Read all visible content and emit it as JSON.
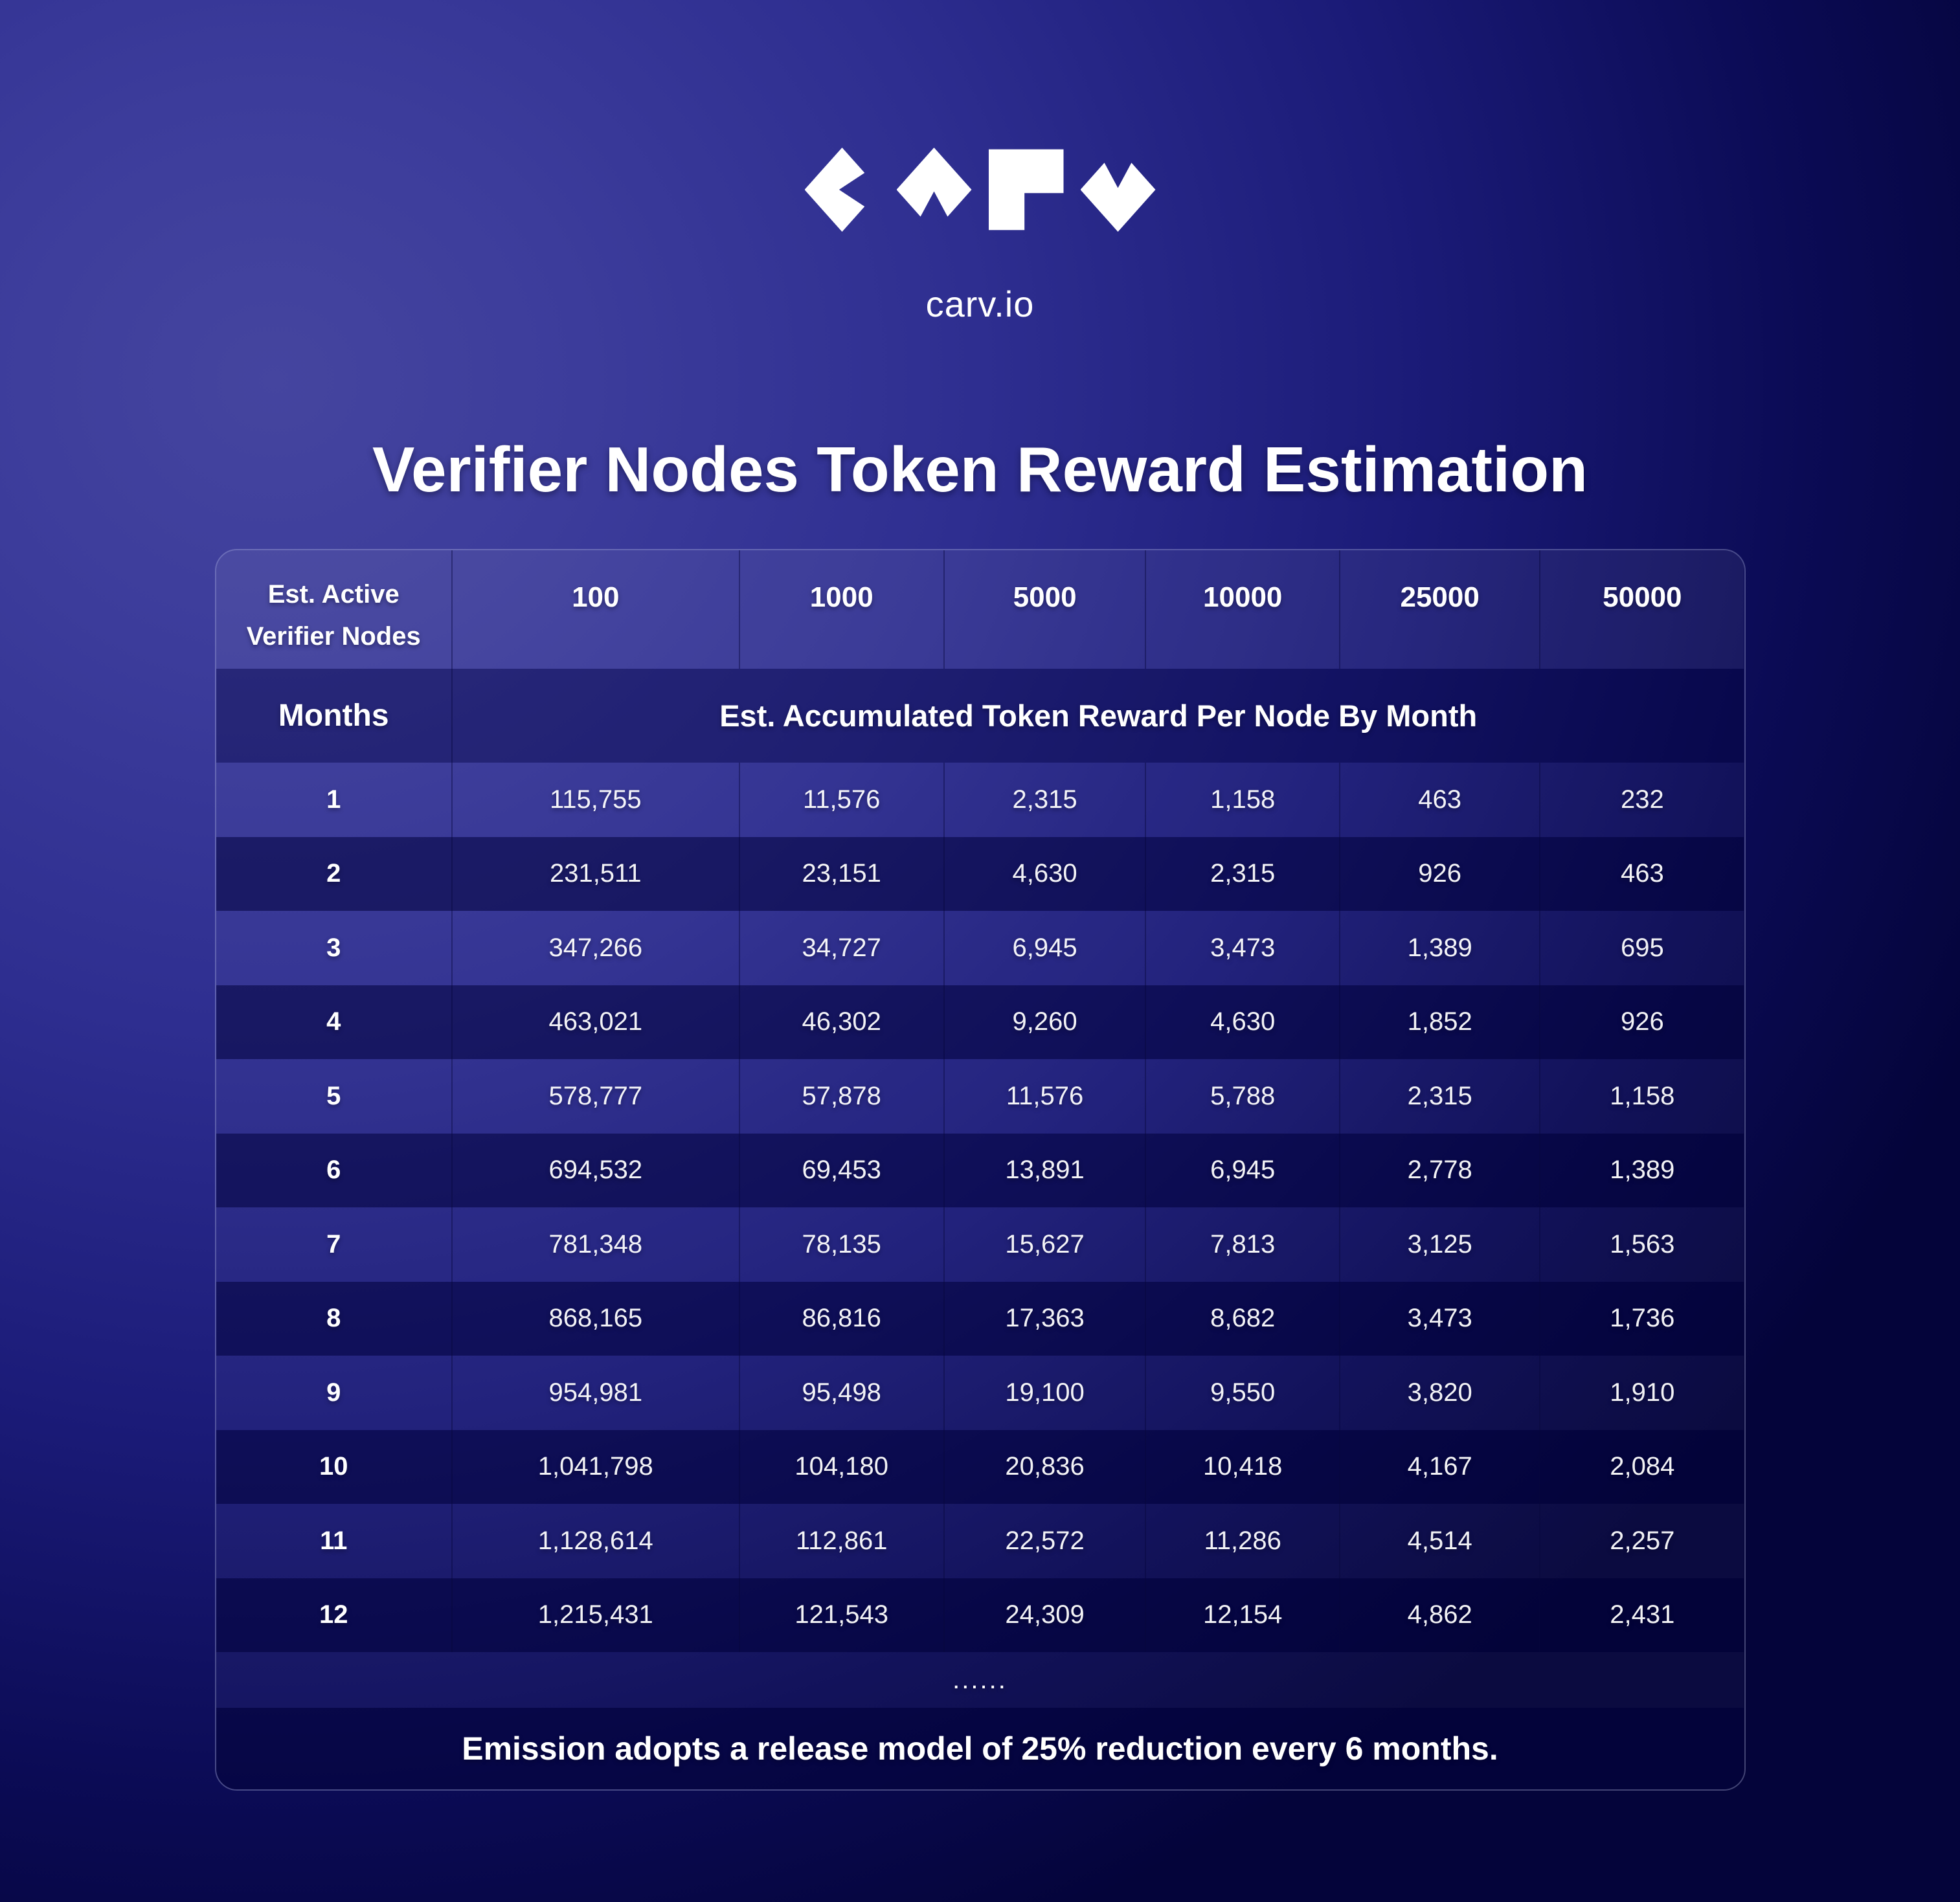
{
  "brand": {
    "domain": "carv.io",
    "logo_glyphs": [
      "c",
      "a",
      "r",
      "v"
    ]
  },
  "title": "Verifier Nodes Token Reward Estimation",
  "table": {
    "corner_header": {
      "line1": "Est. Active",
      "line2": "Verifier Nodes"
    },
    "node_counts": [
      "100",
      "1000",
      "5000",
      "10000",
      "25000",
      "50000"
    ],
    "months_label": "Months",
    "reward_header": "Est. Accumulated Token Reward Per Node By Month",
    "rows": [
      {
        "month": "1",
        "values": [
          "115,755",
          "11,576",
          "2,315",
          "1,158",
          "463",
          "232"
        ]
      },
      {
        "month": "2",
        "values": [
          "231,511",
          "23,151",
          "4,630",
          "2,315",
          "926",
          "463"
        ]
      },
      {
        "month": "3",
        "values": [
          "347,266",
          "34,727",
          "6,945",
          "3,473",
          "1,389",
          "695"
        ]
      },
      {
        "month": "4",
        "values": [
          "463,021",
          "46,302",
          "9,260",
          "4,630",
          "1,852",
          "926"
        ]
      },
      {
        "month": "5",
        "values": [
          "578,777",
          "57,878",
          "11,576",
          "5,788",
          "2,315",
          "1,158"
        ]
      },
      {
        "month": "6",
        "values": [
          "694,532",
          "69,453",
          "13,891",
          "6,945",
          "2,778",
          "1,389"
        ]
      },
      {
        "month": "7",
        "values": [
          "781,348",
          "78,135",
          "15,627",
          "7,813",
          "3,125",
          "1,563"
        ]
      },
      {
        "month": "8",
        "values": [
          "868,165",
          "86,816",
          "17,363",
          "8,682",
          "3,473",
          "1,736"
        ]
      },
      {
        "month": "9",
        "values": [
          "954,981",
          "95,498",
          "19,100",
          "9,550",
          "3,820",
          "1,910"
        ]
      },
      {
        "month": "10",
        "values": [
          "1,041,798",
          "104,180",
          "20,836",
          "10,418",
          "4,167",
          "2,084"
        ]
      },
      {
        "month": "11",
        "values": [
          "1,128,614",
          "112,861",
          "22,572",
          "11,286",
          "4,514",
          "2,257"
        ]
      },
      {
        "month": "12",
        "values": [
          "1,215,431",
          "121,543",
          "24,309",
          "12,154",
          "4,862",
          "2,431"
        ]
      }
    ],
    "ellipsis": "......",
    "footnote": "Emission adopts a release model of 25% reduction every 6 months."
  },
  "colors": {
    "background_light": "#45459f",
    "background_dark": "#04043a",
    "text": "#ffffff"
  },
  "chart_data": {
    "type": "table",
    "title": "Verifier Nodes Token Reward Estimation",
    "column_label": "Est. Active Verifier Nodes",
    "row_label": "Months",
    "value_label": "Est. Accumulated Token Reward Per Node By Month",
    "columns": [
      100,
      1000,
      5000,
      10000,
      25000,
      50000
    ],
    "months": [
      1,
      2,
      3,
      4,
      5,
      6,
      7,
      8,
      9,
      10,
      11,
      12
    ],
    "values": [
      [
        115755,
        11576,
        2315,
        1158,
        463,
        232
      ],
      [
        231511,
        23151,
        4630,
        2315,
        926,
        463
      ],
      [
        347266,
        34727,
        6945,
        3473,
        1389,
        695
      ],
      [
        463021,
        46302,
        9260,
        4630,
        1852,
        926
      ],
      [
        578777,
        57878,
        11576,
        5788,
        2315,
        1158
      ],
      [
        694532,
        69453,
        13891,
        6945,
        2778,
        1389
      ],
      [
        781348,
        78135,
        15627,
        7813,
        3125,
        1563
      ],
      [
        868165,
        86816,
        17363,
        8682,
        3473,
        1736
      ],
      [
        954981,
        95498,
        19100,
        9550,
        3820,
        1910
      ],
      [
        1041798,
        104180,
        20836,
        10418,
        4167,
        2084
      ],
      [
        1128614,
        112861,
        22572,
        11286,
        4514,
        2257
      ],
      [
        1215431,
        121543,
        24309,
        12154,
        4862,
        2431
      ]
    ],
    "footnote": "Emission adopts a release model of 25% reduction every 6 months."
  }
}
